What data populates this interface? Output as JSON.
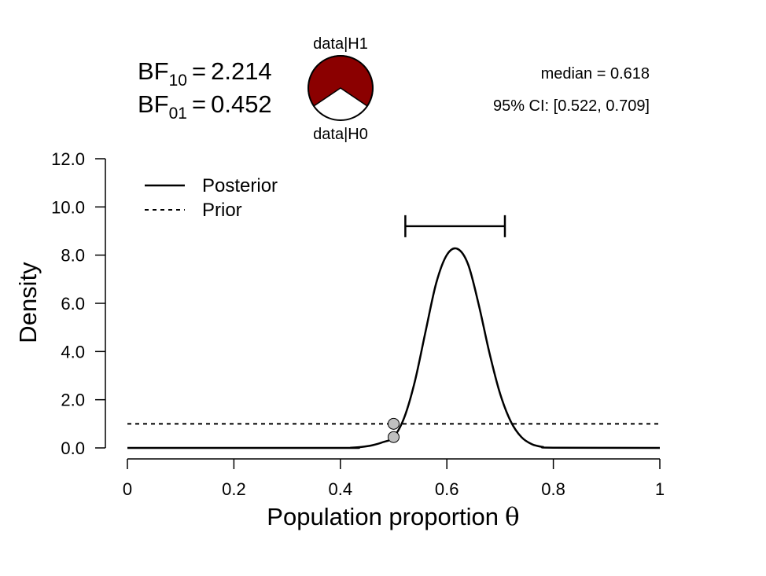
{
  "bayes_factors": {
    "bf10_base": "BF",
    "bf10_sub": "10",
    "bf10_eq": "=",
    "bf10_value": "2.214",
    "bf01_base": "BF",
    "bf01_sub": "01",
    "bf01_eq": "=",
    "bf01_value": "0.452"
  },
  "pie": {
    "top_label": "data|H1",
    "bottom_label": "data|H0",
    "h1_fraction": 0.689,
    "h1_color": "#8B0000",
    "h0_color": "#FFFFFF"
  },
  "summary": {
    "median_text": "median = 0.618",
    "ci_text": "95% CI: [0.522, 0.709]"
  },
  "chart_data": {
    "type": "line",
    "xlabel": "Population proportion",
    "xlabel_symbol": "θ",
    "ylabel": "Density",
    "xlim": [
      0,
      1
    ],
    "ylim": [
      0,
      12
    ],
    "x_ticks": [
      0,
      0.2,
      0.4,
      0.6,
      0.8,
      1
    ],
    "x_tick_labels": [
      "0",
      "0.2",
      "0.4",
      "0.6",
      "0.8",
      "1"
    ],
    "y_ticks": [
      0,
      2,
      4,
      6,
      8,
      10,
      12
    ],
    "y_tick_labels": [
      "0.0",
      "2.0",
      "4.0",
      "6.0",
      "8.0",
      "10.0",
      "12.0"
    ],
    "legend": {
      "placement": "top-left",
      "entries": [
        {
          "label": "Posterior",
          "style": "solid"
        },
        {
          "label": "Prior",
          "style": "dashed"
        }
      ]
    },
    "series": [
      {
        "name": "Posterior",
        "style": "solid",
        "color": "#000000",
        "x": [
          0.4,
          0.42,
          0.44,
          0.46,
          0.48,
          0.5,
          0.52,
          0.54,
          0.56,
          0.58,
          0.6,
          0.62,
          0.64,
          0.66,
          0.68,
          0.7,
          0.72,
          0.74,
          0.76,
          0.78,
          0.8
        ],
        "y": [
          0.0,
          0.01,
          0.04,
          0.11,
          0.24,
          0.45,
          1.26,
          2.77,
          4.83,
          6.84,
          8.01,
          8.26,
          7.61,
          5.93,
          3.94,
          2.25,
          1.1,
          0.45,
          0.15,
          0.04,
          0.01
        ]
      },
      {
        "name": "Prior",
        "style": "dashed",
        "color": "#000000",
        "x": [
          0,
          1
        ],
        "y": [
          1,
          1
        ]
      }
    ],
    "credible_interval": {
      "lower": 0.522,
      "upper": 0.709,
      "y": 9.2
    },
    "points": [
      {
        "x": 0.5,
        "y": 1.0,
        "color": "#C0C0C0"
      },
      {
        "x": 0.5,
        "y": 0.45,
        "color": "#C0C0C0"
      }
    ]
  }
}
